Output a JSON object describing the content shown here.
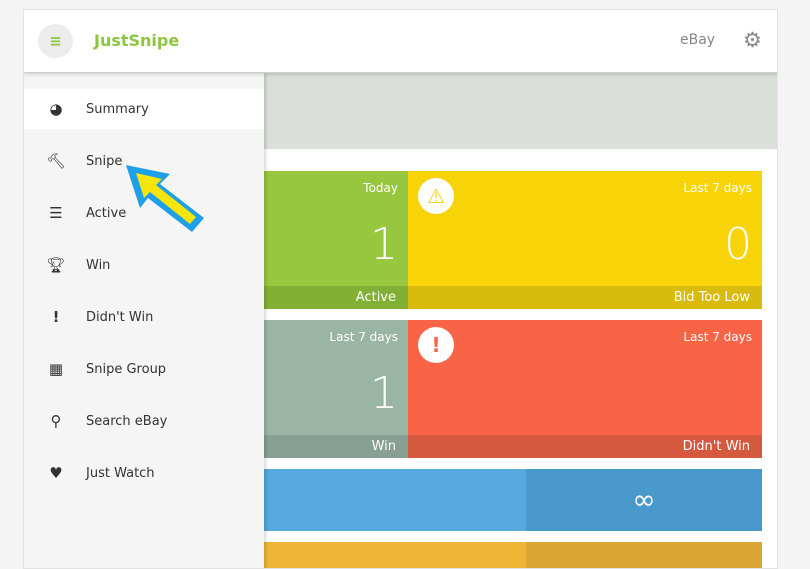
{
  "header": {
    "title": "JustSnipe",
    "ebay_label": "eBay",
    "menu_icon": "hamburger-icon",
    "settings_icon": "gear-icon"
  },
  "sidebar": {
    "items": [
      {
        "label": "Summary",
        "icon": "pie-chart-icon",
        "active": true
      },
      {
        "label": "Snipe",
        "icon": "gavel-icon"
      },
      {
        "label": "Active",
        "icon": "list-icon"
      },
      {
        "label": "Win",
        "icon": "trophy-icon"
      },
      {
        "label": "Didn't Win",
        "icon": "exclamation-icon"
      },
      {
        "label": "Snipe Group",
        "icon": "grid-icon"
      },
      {
        "label": "Search eBay",
        "icon": "search-icon"
      },
      {
        "label": "Just Watch",
        "icon": "heart-icon"
      }
    ]
  },
  "tiles": {
    "active": {
      "period": "Today",
      "value": "1",
      "label": "Active",
      "color": "#97c63f"
    },
    "bid_too_low": {
      "period": "Last 7 days",
      "value": "0",
      "label": "Bid Too Low",
      "color": "#f7d307"
    },
    "win": {
      "period": "Last 7 days",
      "value": "1",
      "label": "Win",
      "color": "#9ab5a4"
    },
    "didnt_win": {
      "period": "Last 7 days",
      "value": "",
      "label": "Didn't Win",
      "color": "#f96446"
    },
    "blue": {
      "value": "∞",
      "color": "#56a8de"
    },
    "orange": {
      "color": "#f0b536"
    }
  }
}
